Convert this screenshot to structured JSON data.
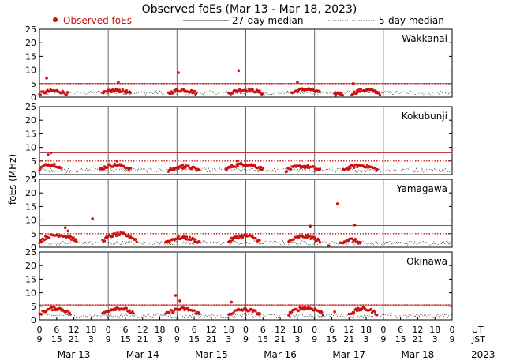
{
  "chart_data": {
    "type": "scatter",
    "title": "Observed foEs (Mar 13 - Mar 18, 2023)",
    "legend": {
      "observed": "Observed foEs",
      "median27": "27-day median",
      "median5": "5-day median",
      "observed_color": "#cc1111",
      "median27_color": "#444444",
      "median5_color": "#444444",
      "placement": "top"
    },
    "ylabel": "foEs (MHz)",
    "ylim": [
      0,
      25
    ],
    "yticks": [
      "0",
      "5",
      "10",
      "15",
      "20",
      "25"
    ],
    "x_range_hours_ut": [
      0,
      144
    ],
    "day_labels": [
      "Mar 13",
      "Mar 14",
      "Mar 15",
      "Mar 16",
      "Mar 17",
      "Mar 18"
    ],
    "year_label": "2023",
    "ut_label": "UT",
    "jst_label": "JST",
    "ut_ticks": [
      "0",
      "6",
      "12",
      "18",
      "0",
      "6",
      "12",
      "18",
      "0",
      "6",
      "12",
      "18",
      "0",
      "6",
      "12",
      "18",
      "0",
      "6",
      "12",
      "18",
      "0",
      "6",
      "12",
      "18",
      "0"
    ],
    "jst_ticks": [
      "9",
      "15",
      "21",
      "3",
      "9",
      "15",
      "21",
      "3",
      "9",
      "15",
      "21",
      "3",
      "9",
      "15",
      "21",
      "3",
      "9",
      "15",
      "21",
      "3",
      "9",
      "15",
      "21",
      "3",
      "9"
    ],
    "stations": [
      {
        "name": "Wakkanai",
        "median27_level": 5.0,
        "median5_level": 5.0,
        "observed_segments": [
          {
            "start": 0,
            "end": 10,
            "level": 2.3
          },
          {
            "start": 22,
            "end": 32,
            "level": 2.5
          },
          {
            "start": 45,
            "end": 55,
            "level": 2.6
          },
          {
            "start": 66,
            "end": 78,
            "level": 2.7
          },
          {
            "start": 88,
            "end": 98,
            "level": 2.9
          },
          {
            "start": 103,
            "end": 106,
            "level": 1.5
          },
          {
            "start": 109,
            "end": 119,
            "level": 2.6
          }
        ],
        "outliers": [
          {
            "x": 2.5,
            "y": 7.0
          },
          {
            "x": 27.5,
            "y": 5.5
          },
          {
            "x": 48.5,
            "y": 9.0
          },
          {
            "x": 69.5,
            "y": 9.8
          },
          {
            "x": 90,
            "y": 5.5
          },
          {
            "x": 109.5,
            "y": 5.0
          }
        ]
      },
      {
        "name": "Kokubunji",
        "median27_level": 8.0,
        "median5_level": 5.0,
        "observed_segments": [
          {
            "start": 0,
            "end": 8,
            "level": 3.8
          },
          {
            "start": 21,
            "end": 32,
            "level": 3.5
          },
          {
            "start": 45,
            "end": 56,
            "level": 2.8
          },
          {
            "start": 65,
            "end": 78,
            "level": 3.8
          },
          {
            "start": 86,
            "end": 98,
            "level": 3.0
          },
          {
            "start": 106,
            "end": 118,
            "level": 3.3
          }
        ],
        "outliers": [
          {
            "x": 4,
            "y": 8.0
          },
          {
            "x": 3,
            "y": 7.3
          },
          {
            "x": 27,
            "y": 5.0
          },
          {
            "x": 50,
            "y": 3.5
          },
          {
            "x": 69,
            "y": 5.0
          }
        ]
      },
      {
        "name": "Yamagawa",
        "median27_level": 8.0,
        "median5_level": 5.0,
        "observed_segments": [
          {
            "start": 0,
            "end": 13,
            "level": 4.5
          },
          {
            "start": 22,
            "end": 34,
            "level": 4.8
          },
          {
            "start": 44,
            "end": 56,
            "level": 3.5
          },
          {
            "start": 66,
            "end": 77,
            "level": 4.2
          },
          {
            "start": 87,
            "end": 98,
            "level": 4.0
          },
          {
            "start": 105,
            "end": 112,
            "level": 2.8
          }
        ],
        "outliers": [
          {
            "x": 9,
            "y": 7.2
          },
          {
            "x": 10,
            "y": 6.0
          },
          {
            "x": 18.5,
            "y": 10.5
          },
          {
            "x": 94.5,
            "y": 7.8
          },
          {
            "x": 104,
            "y": 16.0
          },
          {
            "x": 110,
            "y": 8.2
          },
          {
            "x": 101,
            "y": 0.5
          }
        ]
      },
      {
        "name": "Okinawa",
        "median27_level": 5.5,
        "median5_level": 5.5,
        "observed_segments": [
          {
            "start": 0,
            "end": 11,
            "level": 4.2
          },
          {
            "start": 22,
            "end": 33,
            "level": 4.3
          },
          {
            "start": 44,
            "end": 56,
            "level": 4.0
          },
          {
            "start": 66,
            "end": 77,
            "level": 3.8
          },
          {
            "start": 87,
            "end": 99,
            "level": 4.4
          },
          {
            "start": 108,
            "end": 118,
            "level": 4.0
          }
        ],
        "outliers": [
          {
            "x": 47.5,
            "y": 9.0
          },
          {
            "x": 49,
            "y": 7.0
          },
          {
            "x": 67,
            "y": 6.5
          },
          {
            "x": 103,
            "y": 3.0
          }
        ]
      }
    ]
  }
}
